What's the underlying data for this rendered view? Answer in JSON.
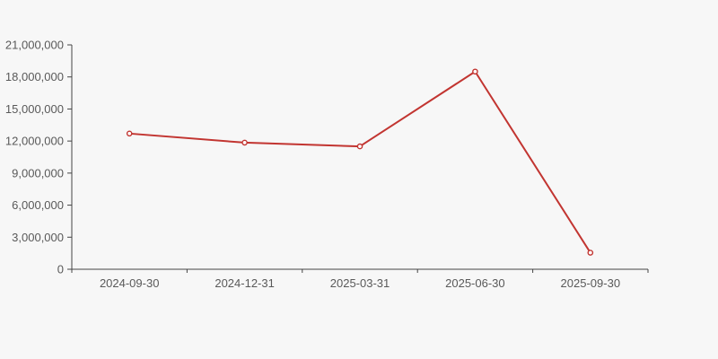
{
  "page": {
    "background_color": "#f7f7f7"
  },
  "chart_data": {
    "type": "line",
    "categories": [
      "2024-09-30",
      "2024-12-31",
      "2025-03-31",
      "2025-06-30",
      "2025-09-30"
    ],
    "values": [
      12700000,
      11850000,
      11500000,
      18500000,
      1550000
    ],
    "y_tick_labels": [
      "0",
      "3,000,000",
      "6,000,000",
      "9,000,000",
      "12,000,000",
      "15,000,000",
      "18,000,000",
      "21,000,000"
    ],
    "y_tick_step": 3000000,
    "ylim": [
      0,
      21000000
    ],
    "xlabel": "",
    "ylabel": "",
    "grid": false,
    "legend": false,
    "line_color": "#c23531",
    "marker_style": "hollow-circle",
    "marker_fill": "#ffffff",
    "axis_color": "#444444",
    "tick_label_color": "#595959"
  }
}
